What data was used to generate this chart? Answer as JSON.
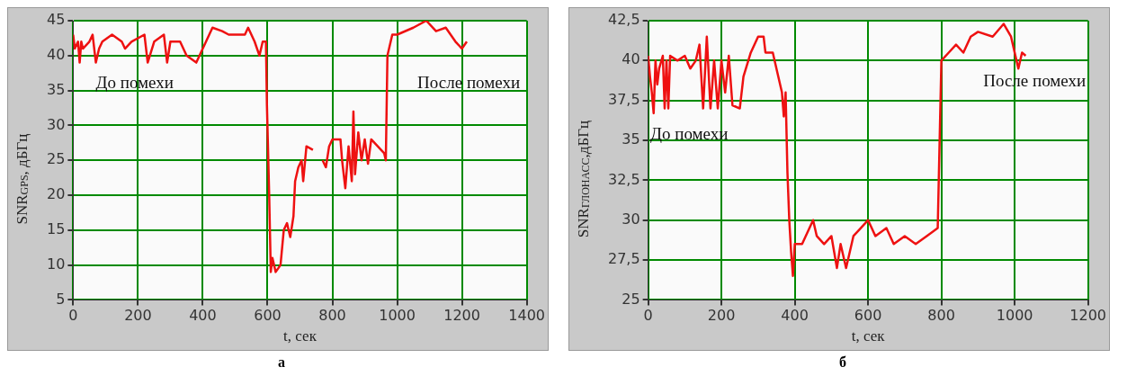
{
  "chart_data": [
    {
      "type": "line",
      "title": "а",
      "xlabel": "t, сек",
      "ylabel": "SNR$_{GPS}$, дБГц",
      "series": [
        {
          "color": "#ee1111",
          "x": [
            0,
            5,
            15,
            20,
            25,
            30,
            50,
            60,
            70,
            80,
            90,
            120,
            150,
            160,
            180,
            220,
            230,
            250,
            280,
            290,
            300,
            330,
            350,
            380,
            390,
            410,
            430,
            460,
            480,
            530,
            540,
            560,
            575,
            585,
            595,
            598,
            605,
            610,
            615,
            625,
            640,
            650,
            660,
            670,
            680,
            685,
            695,
            705,
            710,
            720,
            740,
            755,
            770,
            780,
            790,
            800,
            825,
            830,
            840,
            850,
            860,
            865,
            870,
            880,
            890,
            900,
            910,
            920,
            940,
            960,
            965,
            970,
            985,
            1000,
            1050,
            1090,
            1120,
            1150,
            1180,
            1200,
            1215
          ],
          "values": [
            43,
            41,
            42,
            39,
            42,
            41,
            42,
            43,
            39,
            41,
            42,
            43,
            42,
            41,
            42,
            43,
            39,
            42,
            43,
            39,
            42,
            42,
            40,
            39,
            40,
            42,
            44,
            43.5,
            43,
            43,
            44,
            42,
            40,
            42,
            42,
            33,
            20,
            9,
            11,
            9,
            10,
            15,
            16,
            14,
            17,
            22,
            24,
            25,
            22,
            27,
            26.5,
            null,
            25,
            24,
            27,
            28,
            28,
            25,
            21,
            27,
            22,
            32,
            23,
            29,
            25,
            28,
            24.5,
            28,
            27,
            26,
            25,
            40,
            43,
            43,
            44,
            45,
            43.5,
            44,
            42,
            41,
            42
          ]
        }
      ],
      "xlim": [
        0,
        1400
      ],
      "xticks": [
        0,
        200,
        400,
        600,
        800,
        1000,
        1200,
        1400
      ],
      "ylim": [
        5,
        45
      ],
      "yticks": [
        5,
        10,
        15,
        20,
        25,
        30,
        35,
        40,
        45
      ],
      "grid": true,
      "annotations": [
        "До помехи",
        "После помехи"
      ]
    },
    {
      "type": "line",
      "title": "б",
      "xlabel": "t, сек",
      "ylabel": "SNR$_{ГЛОНАСС}$,дБГц",
      "series": [
        {
          "color": "#ee1111",
          "x": [
            0,
            5,
            10,
            15,
            20,
            25,
            30,
            40,
            45,
            50,
            55,
            60,
            80,
            100,
            115,
            130,
            140,
            150,
            160,
            170,
            180,
            190,
            200,
            210,
            220,
            230,
            250,
            260,
            280,
            300,
            315,
            320,
            340,
            350,
            365,
            370,
            375,
            380,
            385,
            390,
            395,
            400,
            420,
            450,
            460,
            480,
            500,
            515,
            525,
            540,
            560,
            580,
            600,
            620,
            650,
            670,
            700,
            730,
            760,
            790,
            800,
            820,
            840,
            860,
            880,
            900,
            940,
            970,
            990,
            1000,
            1010,
            1020,
            1030
          ],
          "values": [
            40.3,
            39,
            38,
            36.7,
            40,
            38.5,
            39.5,
            40.3,
            37,
            40,
            37,
            40.3,
            40,
            40.3,
            39.5,
            40,
            41,
            37,
            41.5,
            37,
            40,
            37,
            40,
            38,
            40.3,
            37.2,
            37,
            39,
            40.5,
            41.5,
            41.5,
            40.5,
            40.5,
            39.5,
            38,
            36.5,
            38,
            33,
            30,
            28,
            26.5,
            28.5,
            28.5,
            30,
            29,
            28.5,
            29,
            27,
            28.5,
            27,
            29,
            29.5,
            30,
            29,
            29.5,
            28.5,
            29,
            28.5,
            29,
            29.5,
            40,
            40.5,
            41,
            40.5,
            41.5,
            41.8,
            41.5,
            42.3,
            41.5,
            40.5,
            39.5,
            40.5,
            40.3
          ]
        }
      ],
      "xlim": [
        0,
        1200
      ],
      "xticks": [
        0,
        200,
        400,
        600,
        800,
        1000,
        1200
      ],
      "ylim": [
        25,
        42.5
      ],
      "yticks": [
        25,
        {
          "value": 27.5,
          "label": "27,5"
        },
        30,
        {
          "value": 32.5,
          "label": "32,5"
        },
        35,
        {
          "value": 37.5,
          "label": "37,5"
        },
        40,
        {
          "value": 42.5,
          "label": "42,5"
        }
      ],
      "grid": true,
      "annotations": [
        "До помехи",
        "После помехи"
      ]
    }
  ]
}
